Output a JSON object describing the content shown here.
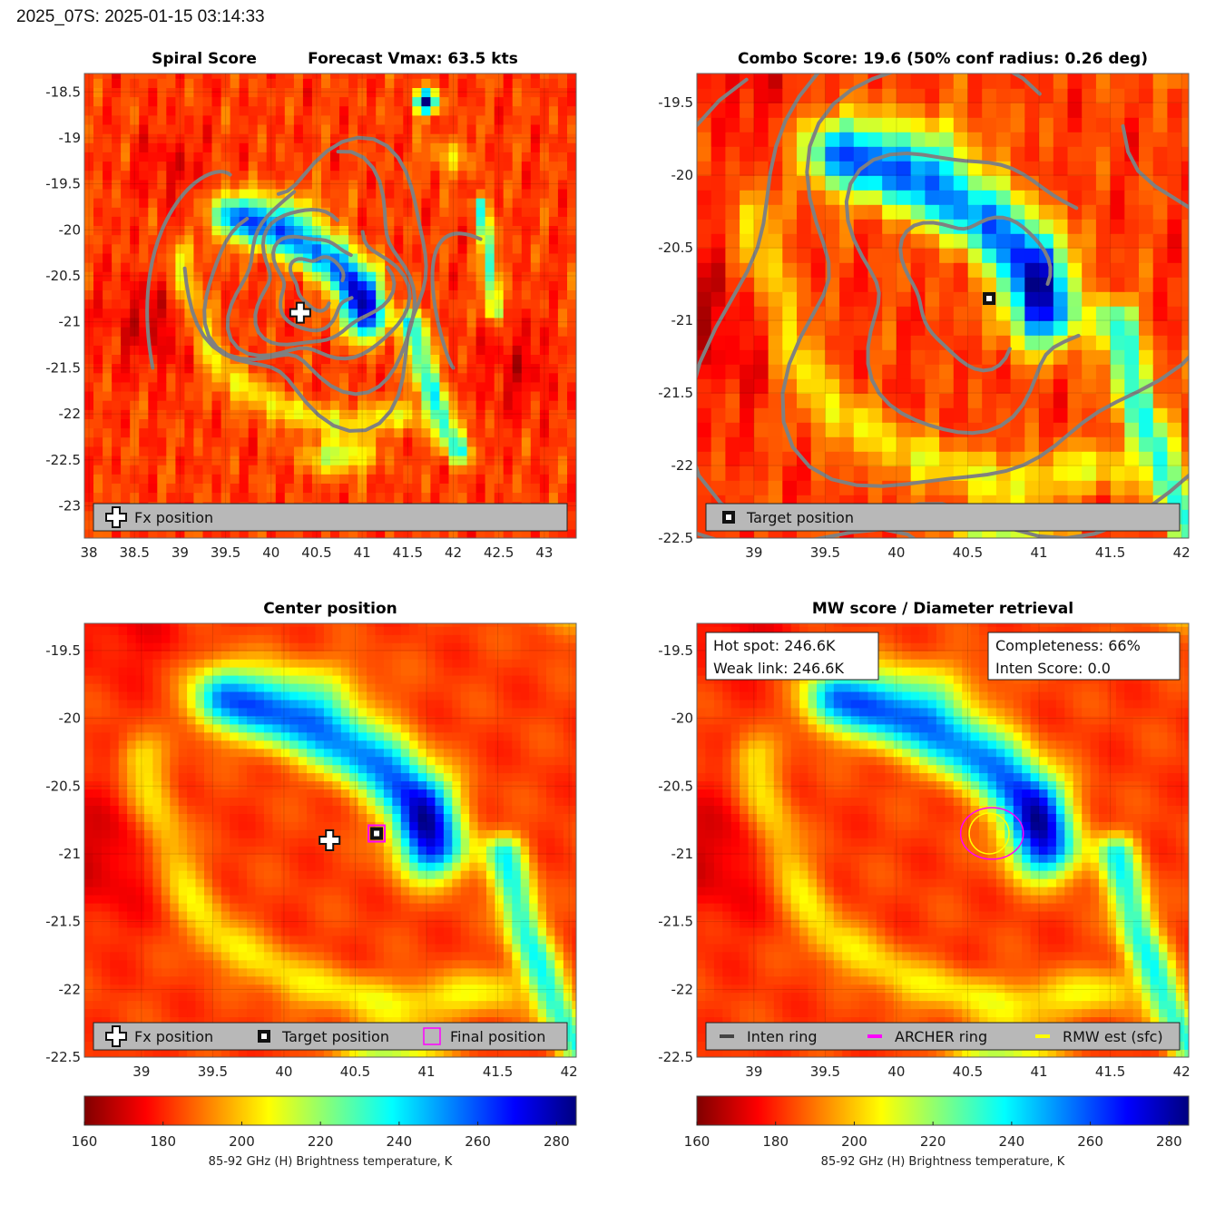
{
  "header": {
    "title": "2025_07S: 2025-01-15 03:14:33"
  },
  "colormap": {
    "name": "jet",
    "range": [
      160,
      285
    ],
    "ticks": [
      160,
      180,
      200,
      220,
      240,
      260,
      280
    ],
    "label": "85-92 GHz (H) Brightness temperature, K"
  },
  "contour_color": "#808080",
  "panels": [
    {
      "id": "spiral",
      "titles": [
        "Spiral Score",
        "Forecast Vmax: 63.5 kts"
      ],
      "xlim": [
        37.95,
        43.35
      ],
      "ylim": [
        -23.35,
        -18.3
      ],
      "xticks": [
        38,
        38.5,
        39,
        39.5,
        40,
        40.5,
        41,
        41.5,
        42,
        42.5,
        43
      ],
      "yticks": [
        -18.5,
        -19,
        -19.5,
        -20,
        -20.5,
        -21,
        -21.5,
        -22,
        -22.5,
        -23
      ],
      "texture": "blocky",
      "legend": [
        {
          "icon": "fx-cross",
          "label": "Fx position"
        }
      ],
      "markers": [
        {
          "type": "cross",
          "x": 40.32,
          "y": -20.9
        }
      ]
    },
    {
      "id": "combo",
      "titles": [
        "Combo Score: 19.6  (50% conf radius: 0.26 deg)"
      ],
      "xlim": [
        38.6,
        42.05
      ],
      "ylim": [
        -22.5,
        -19.3
      ],
      "xticks": [
        39,
        39.5,
        40,
        40.5,
        41,
        41.5,
        42
      ],
      "yticks": [
        -19.5,
        -20,
        -20.5,
        -21,
        -21.5,
        -22,
        -22.5
      ],
      "texture": "blocky",
      "legend": [
        {
          "icon": "target-square",
          "label": "Target position"
        }
      ],
      "markers": [
        {
          "type": "target",
          "x": 40.65,
          "y": -20.85
        }
      ]
    },
    {
      "id": "center",
      "titles": [
        "Center position"
      ],
      "xlim": [
        38.6,
        42.05
      ],
      "ylim": [
        -22.5,
        -19.3
      ],
      "xticks": [
        39,
        39.5,
        40,
        40.5,
        41,
        41.5,
        42
      ],
      "yticks": [
        -19.5,
        -20,
        -20.5,
        -21,
        -21.5,
        -22,
        -22.5
      ],
      "texture": "smooth",
      "legend": [
        {
          "icon": "fx-cross",
          "label": "Fx position"
        },
        {
          "icon": "target-square",
          "label": "Target position"
        },
        {
          "icon": "final-square",
          "label": "Final position"
        }
      ],
      "markers": [
        {
          "type": "cross",
          "x": 40.32,
          "y": -20.9
        },
        {
          "type": "target",
          "x": 40.65,
          "y": -20.85
        },
        {
          "type": "final",
          "x": 40.65,
          "y": -20.85
        }
      ]
    },
    {
      "id": "mw",
      "titles": [
        "MW score / Diameter retrieval"
      ],
      "xlim": [
        38.6,
        42.05
      ],
      "ylim": [
        -22.5,
        -19.3
      ],
      "xticks": [
        39,
        39.5,
        40,
        40.5,
        41,
        41.5,
        42
      ],
      "yticks": [
        -19.5,
        -20,
        -20.5,
        -21,
        -21.5,
        -22,
        -22.5
      ],
      "texture": "smooth",
      "info_left": [
        "Hot spot: 246.6K",
        "Weak link: 246.6K"
      ],
      "info_right": [
        "Completeness: 66%",
        "Inten Score: 0.0"
      ],
      "legend": [
        {
          "icon": "inten-line",
          "label": "Inten ring",
          "color": "#444444"
        },
        {
          "icon": "archer-line",
          "label": "ARCHER ring",
          "color": "#ff00ff"
        },
        {
          "icon": "rmw-line",
          "label": "RMW est (sfc)",
          "color": "#ffff00"
        }
      ],
      "rings": [
        {
          "name": "archer",
          "x": 40.67,
          "y": -20.85,
          "rx": 0.22,
          "ry": 0.19,
          "color": "#ff00ff"
        },
        {
          "name": "rmw",
          "x": 40.65,
          "y": -20.85,
          "rx": 0.14,
          "ry": 0.15,
          "color": "#ffff00"
        }
      ]
    }
  ]
}
